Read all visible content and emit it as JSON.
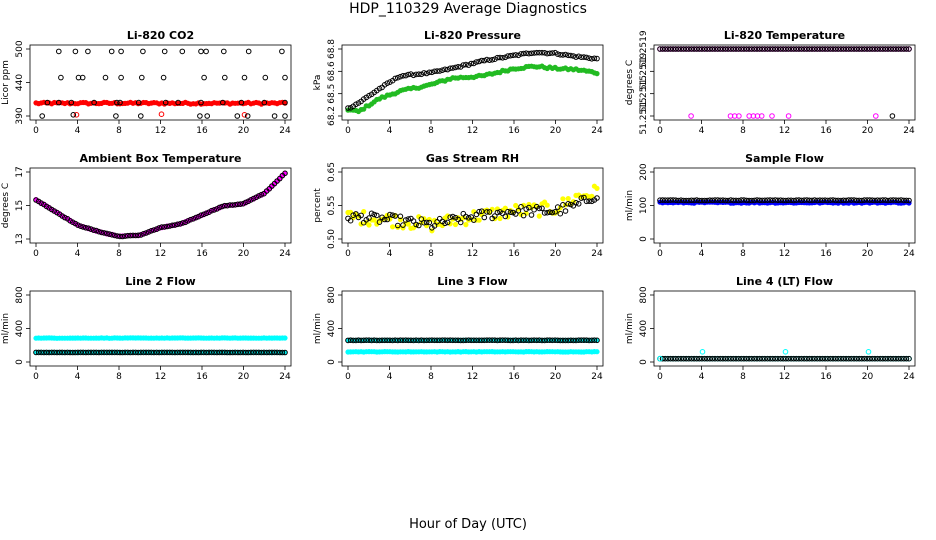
{
  "figure": {
    "title": "HDP_110329  Average Diagnostics",
    "xlabel": "Hour of Day (UTC)"
  },
  "colors": {
    "black": "#000000",
    "red": "#ff0000",
    "green": "#22bb22",
    "magenta": "#ff00ff",
    "yellow": "#ffff00",
    "blue": "#0000ff",
    "cyan": "#00ffff"
  },
  "chart_data": [
    {
      "id": "li820-co2",
      "type": "scatter",
      "title": "Li-820 CO2",
      "ylabel": "Licor ppm",
      "xlim": [
        0,
        24
      ],
      "ylim": [
        390,
        500
      ],
      "xticks": [
        "0",
        "4",
        "8",
        "12",
        "16",
        "20",
        "24"
      ],
      "yticks": [
        "390",
        "440",
        "500"
      ],
      "series": [
        {
          "color": "red",
          "filled": true,
          "pattern": "const",
          "value": 411,
          "noise": 1.5
        },
        {
          "color": "red",
          "filled": false,
          "pattern": "points",
          "points": [
            [
              3.9,
              392
            ],
            [
              12.1,
              393
            ],
            [
              20.1,
              392
            ]
          ]
        },
        {
          "color": "black",
          "filled": false,
          "pattern": "points",
          "points": [
            [
              0.6,
              390
            ],
            [
              1.1,
              412
            ],
            [
              2.2,
              412
            ],
            [
              2.4,
              453
            ],
            [
              2.2,
              496
            ],
            [
              3.4,
              412
            ],
            [
              3.6,
              392
            ],
            [
              3.8,
              496
            ],
            [
              4.1,
              453
            ],
            [
              4.5,
              453
            ],
            [
              5.0,
              496
            ],
            [
              5.6,
              412
            ],
            [
              6.7,
              453
            ],
            [
              7.3,
              496
            ],
            [
              7.7,
              390
            ],
            [
              7.8,
              412
            ],
            [
              8.2,
              453
            ],
            [
              8.1,
              412
            ],
            [
              8.2,
              496
            ],
            [
              9.9,
              412
            ],
            [
              10.2,
              453
            ],
            [
              10.1,
              390
            ],
            [
              10.3,
              496
            ],
            [
              12.3,
              453
            ],
            [
              12.5,
              412
            ],
            [
              12.4,
              496
            ],
            [
              13.7,
              412
            ],
            [
              14.1,
              496
            ],
            [
              15.8,
              390
            ],
            [
              15.9,
              412
            ],
            [
              15.9,
              496
            ],
            [
              16.2,
              453
            ],
            [
              16.5,
              390
            ],
            [
              16.4,
              496
            ],
            [
              18.1,
              496
            ],
            [
              18.0,
              412
            ],
            [
              18.2,
              453
            ],
            [
              19.4,
              390
            ],
            [
              19.8,
              412
            ],
            [
              20.1,
              453
            ],
            [
              20.4,
              390
            ],
            [
              20.5,
              496
            ],
            [
              22.0,
              412
            ],
            [
              22.1,
              453
            ],
            [
              23.0,
              390
            ],
            [
              23.7,
              496
            ],
            [
              24.0,
              412
            ],
            [
              24.0,
              453
            ],
            [
              24.0,
              390
            ]
          ]
        }
      ]
    },
    {
      "id": "li820-pressure",
      "type": "scatter",
      "title": "Li-820 Pressure",
      "ylabel": "kPa",
      "xlim": [
        0,
        24
      ],
      "ylim": [
        68.2,
        68.82
      ],
      "xticks": [
        "0",
        "4",
        "8",
        "12",
        "16",
        "20",
        "24"
      ],
      "yticks": [
        "68.2",
        "68.5",
        "68.6",
        "68.8"
      ],
      "series": [
        {
          "color": "green",
          "filled": true,
          "pattern": "curve",
          "knots": [
            [
              0,
              68.26
            ],
            [
              1,
              68.24
            ],
            [
              3,
              68.36
            ],
            [
              5,
              68.43
            ],
            [
              8,
              68.49
            ],
            [
              10,
              68.55
            ],
            [
              13,
              68.57
            ],
            [
              16,
              68.64
            ],
            [
              18,
              68.66
            ],
            [
              20,
              68.64
            ],
            [
              22,
              68.63
            ],
            [
              24,
              68.6
            ]
          ],
          "noise": 0.01
        },
        {
          "color": "black",
          "filled": false,
          "pattern": "curve",
          "knots": [
            [
              0,
              68.27
            ],
            [
              1,
              68.32
            ],
            [
              3,
              68.45
            ],
            [
              5,
              68.57
            ],
            [
              8,
              68.6
            ],
            [
              10,
              68.64
            ],
            [
              13,
              68.71
            ],
            [
              16,
              68.76
            ],
            [
              18,
              68.79
            ],
            [
              20,
              68.78
            ],
            [
              22,
              68.75
            ],
            [
              24,
              68.73
            ]
          ],
          "noise": 0.007
        }
      ]
    },
    {
      "id": "li820-temperature",
      "type": "scatter",
      "title": "Li-820 Temperature",
      "ylabel": "degrees C",
      "xlim": [
        0,
        24
      ],
      "ylim": [
        51.25125,
        51.25195
      ],
      "xticks": [
        "0",
        "4",
        "8",
        "12",
        "16",
        "20",
        "24"
      ],
      "yticks": [
        "51.2515",
        "51.2515",
        "51.2519",
        "51.2519"
      ],
      "series": [
        {
          "color": "magenta",
          "filled": false,
          "pattern": "const",
          "value": 51.25195,
          "noise": 0
        },
        {
          "color": "black",
          "filled": false,
          "pattern": "const",
          "value": 51.25195,
          "noise": 0
        },
        {
          "color": "magenta",
          "filled": false,
          "pattern": "points",
          "points": [
            [
              3.0,
              51.25125
            ],
            [
              6.8,
              51.25125
            ],
            [
              7.2,
              51.25125
            ],
            [
              7.6,
              51.25125
            ],
            [
              8.6,
              51.25125
            ],
            [
              9.0,
              51.25125
            ],
            [
              9.4,
              51.25125
            ],
            [
              9.8,
              51.25125
            ],
            [
              10.8,
              51.25125
            ],
            [
              12.4,
              51.25125
            ],
            [
              20.8,
              51.25125
            ]
          ]
        },
        {
          "color": "black",
          "filled": false,
          "pattern": "points",
          "points": [
            [
              22.4,
              51.25125
            ]
          ]
        }
      ]
    },
    {
      "id": "ambient-box-temperature",
      "type": "scatter",
      "title": "Ambient Box Temperature",
      "ylabel": "degrees C",
      "xlim": [
        0,
        24
      ],
      "ylim": [
        11.7,
        17.0
      ],
      "xticks": [
        "0",
        "4",
        "8",
        "12",
        "16",
        "20",
        "24"
      ],
      "yticks": [
        "13",
        "15",
        "17"
      ],
      "series": [
        {
          "color": "magenta",
          "filled": true,
          "pattern": "curve",
          "knots": [
            [
              0,
              14.8
            ],
            [
              2,
              13.8
            ],
            [
              4,
              12.8
            ],
            [
              6,
              12.3
            ],
            [
              8,
              11.9
            ],
            [
              10,
              12.0
            ],
            [
              12,
              12.6
            ],
            [
              14,
              12.9
            ],
            [
              16,
              13.6
            ],
            [
              18,
              14.3
            ],
            [
              20,
              14.5
            ],
            [
              22,
              15.3
            ],
            [
              24,
              16.9
            ]
          ],
          "noise": 0.03
        },
        {
          "color": "black",
          "filled": false,
          "pattern": "curve",
          "knots": [
            [
              0,
              14.8
            ],
            [
              2,
              13.8
            ],
            [
              4,
              12.8
            ],
            [
              6,
              12.3
            ],
            [
              8,
              11.9
            ],
            [
              10,
              12.0
            ],
            [
              12,
              12.6
            ],
            [
              14,
              12.9
            ],
            [
              16,
              13.6
            ],
            [
              18,
              14.3
            ],
            [
              20,
              14.5
            ],
            [
              22,
              15.3
            ],
            [
              24,
              16.9
            ]
          ],
          "noise": 0.02
        }
      ]
    },
    {
      "id": "gas-stream-rh",
      "type": "scatter",
      "title": "Gas Stream RH",
      "ylabel": "percent",
      "xlim": [
        0,
        24
      ],
      "ylim": [
        0.48,
        0.72
      ],
      "xticks": [
        "0",
        "4",
        "8",
        "12",
        "16",
        "20",
        "24"
      ],
      "yticks": [
        "0.50",
        "0.55",
        "0.65"
      ],
      "series": [
        {
          "color": "yellow",
          "filled": true,
          "pattern": "curve",
          "knots": [
            [
              0,
              0.56
            ],
            [
              4,
              0.55
            ],
            [
              8,
              0.53
            ],
            [
              12,
              0.56
            ],
            [
              16,
              0.58
            ],
            [
              20,
              0.59
            ],
            [
              22,
              0.63
            ],
            [
              24,
              0.65
            ]
          ],
          "noise": 0.025
        },
        {
          "color": "black",
          "filled": false,
          "pattern": "curve",
          "knots": [
            [
              0,
              0.56
            ],
            [
              4,
              0.55
            ],
            [
              8,
              0.53
            ],
            [
              12,
              0.56
            ],
            [
              16,
              0.58
            ],
            [
              20,
              0.58
            ],
            [
              22,
              0.6
            ],
            [
              24,
              0.64
            ]
          ],
          "noise": 0.018
        }
      ]
    },
    {
      "id": "sample-flow",
      "type": "scatter",
      "title": "Sample Flow",
      "ylabel": "ml/min",
      "xlim": [
        0,
        24
      ],
      "ylim": [
        -10,
        220
      ],
      "xticks": [
        "0",
        "4",
        "8",
        "12",
        "16",
        "20",
        "24"
      ],
      "yticks": [
        "0",
        "100",
        "200"
      ],
      "series": [
        {
          "color": "blue",
          "filled": true,
          "pattern": "const",
          "value": 115,
          "noise": 2
        },
        {
          "color": "black",
          "filled": false,
          "pattern": "const",
          "value": 123,
          "noise": 1
        }
      ]
    },
    {
      "id": "line-2-flow",
      "type": "scatter",
      "title": "Line 2 Flow",
      "ylabel": "ml/min",
      "xlim": [
        0,
        24
      ],
      "ylim": [
        -50,
        1000
      ],
      "xticks": [
        "0",
        "4",
        "8",
        "12",
        "16",
        "20",
        "24"
      ],
      "yticks": [
        "0",
        "400",
        "800"
      ],
      "series": [
        {
          "color": "cyan",
          "filled": true,
          "pattern": "const",
          "value": 325,
          "noise": 3
        },
        {
          "color": "cyan",
          "filled": true,
          "pattern": "const",
          "value": 100,
          "noise": 2
        },
        {
          "color": "black",
          "filled": false,
          "pattern": "const",
          "value": 100,
          "noise": 1
        }
      ]
    },
    {
      "id": "line-3-flow",
      "type": "scatter",
      "title": "Line 3 Flow",
      "ylabel": "ml/min",
      "xlim": [
        0,
        24
      ],
      "ylim": [
        -50,
        1000
      ],
      "xticks": [
        "0",
        "4",
        "8",
        "12",
        "16",
        "20",
        "24"
      ],
      "yticks": [
        "0",
        "400",
        "800"
      ],
      "series": [
        {
          "color": "cyan",
          "filled": true,
          "pattern": "const",
          "value": 110,
          "noise": 3
        },
        {
          "color": "cyan",
          "filled": true,
          "pattern": "const",
          "value": 290,
          "noise": 2
        },
        {
          "color": "black",
          "filled": false,
          "pattern": "const",
          "value": 290,
          "noise": 2
        }
      ]
    },
    {
      "id": "line-4-lt-flow",
      "type": "scatter",
      "title": "Line 4 (LT) Flow",
      "ylabel": "ml/min",
      "xlim": [
        0,
        24
      ],
      "ylim": [
        -50,
        1000
      ],
      "xticks": [
        "0",
        "4",
        "8",
        "12",
        "16",
        "20",
        "24"
      ],
      "yticks": [
        "0",
        "400",
        "800"
      ],
      "series": [
        {
          "color": "cyan",
          "filled": false,
          "pattern": "const",
          "value": 2,
          "noise": 0
        },
        {
          "color": "black",
          "filled": false,
          "pattern": "const",
          "value": 2,
          "noise": 0
        },
        {
          "color": "cyan",
          "filled": false,
          "pattern": "points",
          "points": [
            [
              0,
              2
            ],
            [
              4.1,
              110
            ],
            [
              12.1,
              110
            ],
            [
              20.1,
              110
            ]
          ]
        }
      ]
    }
  ]
}
